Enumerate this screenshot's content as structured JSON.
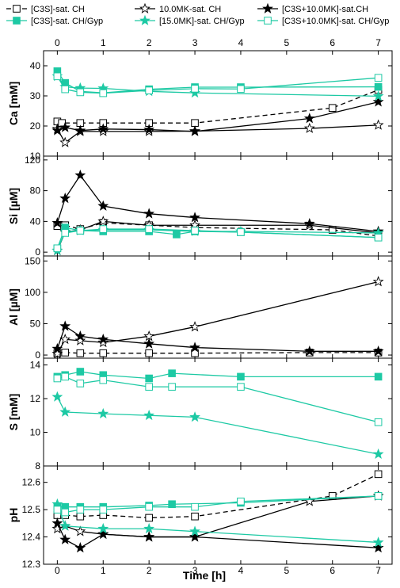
{
  "chart_data": {
    "type": "line",
    "xlabel": "Time [h]",
    "xlim": [
      -0.3,
      7.3
    ],
    "xticks": [
      0,
      1,
      2,
      3,
      4,
      5,
      6,
      7
    ],
    "legend": {
      "placement": "top",
      "entries": [
        {
          "key": "c3s_ch",
          "label": "[C3S]-sat. CH"
        },
        {
          "key": "mk_ch",
          "label": "10.0MK-sat. CH"
        },
        {
          "key": "c3smk_ch",
          "label": "[C3S+10.0MK]-sat.CH"
        },
        {
          "key": "c3s_gyp",
          "label": "[C3S]-sat. CH/Gyp"
        },
        {
          "key": "mk_gyp",
          "label": "[15.0MK]-sat. CH/Gyp"
        },
        {
          "key": "c3smk_gyp",
          "label": "[C3S+10.0MK]-sat. CH/Gyp"
        }
      ]
    },
    "styles": {
      "c3s_ch": {
        "color": "#000000",
        "marker": "square",
        "fill": "open",
        "dash": "6,4"
      },
      "mk_ch": {
        "color": "#000000",
        "marker": "star",
        "fill": "open",
        "dash": ""
      },
      "c3smk_ch": {
        "color": "#000000",
        "marker": "star",
        "fill": "filled",
        "dash": ""
      },
      "c3s_gyp": {
        "color": "#1dc9a4",
        "marker": "square",
        "fill": "filled",
        "dash": ""
      },
      "mk_gyp": {
        "color": "#1dc9a4",
        "marker": "star",
        "fill": "filled",
        "dash": ""
      },
      "c3smk_gyp": {
        "color": "#1dc9a4",
        "marker": "square",
        "fill": "open",
        "dash": ""
      }
    },
    "panels": [
      {
        "ylabel": "Ca [mM]",
        "ylim": [
          10,
          45
        ],
        "yticks": [
          10,
          20,
          30,
          40
        ],
        "ytick_labels": [
          "10",
          "20",
          "30",
          "40"
        ],
        "series": [
          {
            "key": "c3s_ch",
            "x": [
              0,
              0.1,
              0.5,
              1,
              2,
              3,
              6,
              7
            ],
            "y": [
              21.5,
              21,
              21,
              21,
              21,
              21,
              26,
              32
            ]
          },
          {
            "key": "mk_ch",
            "x": [
              0,
              0.17,
              0.5,
              1,
              2,
              3,
              5.5,
              7
            ],
            "y": [
              19,
              14.5,
              18.2,
              18.2,
              18.2,
              18.3,
              19.2,
              20.3
            ]
          },
          {
            "key": "c3smk_ch",
            "x": [
              0,
              0.17,
              0.5,
              1,
              2,
              3,
              5.5,
              7
            ],
            "y": [
              18.5,
              19.5,
              18.5,
              19,
              18.8,
              18.2,
              22.5,
              28
            ]
          },
          {
            "key": "c3s_gyp",
            "x": [
              0,
              0.17,
              0.5,
              1,
              2,
              3,
              4,
              7
            ],
            "y": [
              38.2,
              34.3,
              31.5,
              31,
              32.2,
              32.9,
              32.9,
              33
            ]
          },
          {
            "key": "mk_gyp",
            "x": [
              0,
              0.17,
              0.5,
              1,
              2,
              3,
              7
            ],
            "y": [
              36.5,
              33,
              32.6,
              32.5,
              31.5,
              31,
              29.9
            ]
          },
          {
            "key": "c3smk_gyp",
            "x": [
              0,
              0.17,
              0.5,
              1,
              2,
              3,
              4,
              7
            ],
            "y": [
              36.5,
              32.2,
              31.2,
              30.9,
              31.8,
              32.4,
              32.3,
              36
            ]
          }
        ]
      },
      {
        "ylabel": "Si [µM]",
        "ylim": [
          -5,
          125
        ],
        "yticks": [
          0,
          40,
          80,
          120
        ],
        "ytick_labels": [
          "0",
          "40",
          "80",
          "120"
        ],
        "series": [
          {
            "key": "c3s_ch",
            "x": [
              0,
              0.17,
              0.5,
              1,
              2,
              3,
              6,
              7
            ],
            "y": [
              34,
              35,
              30,
              38,
              35,
              32,
              29,
              21
            ]
          },
          {
            "key": "mk_ch",
            "x": [
              0,
              0.17,
              0.5,
              1,
              2,
              3,
              5.5,
              7
            ],
            "y": [
              2,
              26,
              29,
              40,
              35,
              35,
              35,
              25
            ]
          },
          {
            "key": "c3smk_ch",
            "x": [
              0,
              0.17,
              0.5,
              1,
              2,
              3,
              5.5,
              7
            ],
            "y": [
              38,
              70,
              100,
              60,
              50,
              45,
              37,
              27
            ]
          },
          {
            "key": "c3s_gyp",
            "x": [
              0,
              0.17,
              0.5,
              1,
              2,
              2.6,
              3,
              4,
              7
            ],
            "y": [
              5,
              32,
              28,
              27,
              27,
              23,
              27,
              26,
              19
            ]
          },
          {
            "key": "mk_gyp",
            "x": [
              0,
              0.17,
              0.5,
              1,
              2,
              3,
              4,
              7
            ],
            "y": [
              2,
              27,
              28,
              29,
              29,
              27,
              27,
              25
            ]
          },
          {
            "key": "c3smk_gyp",
            "x": [
              0,
              0.17,
              0.5,
              1,
              2,
              3,
              4,
              7
            ],
            "y": [
              5,
              25,
              28,
              30,
              30,
              28,
              26,
              19
            ]
          }
        ]
      },
      {
        "ylabel": "Al [µM]",
        "ylim": [
          -5,
          158
        ],
        "yticks": [
          0,
          50,
          100,
          150
        ],
        "ytick_labels": [
          "0",
          "50",
          "100",
          "150"
        ],
        "series": [
          {
            "key": "c3s_ch",
            "x": [
              0,
              0.17,
              0.5,
              1,
              2,
              3,
              5.5,
              7
            ],
            "y": [
              3,
              4,
              3,
              3,
              3,
              3,
              4,
              4
            ]
          },
          {
            "key": "mk_ch",
            "x": [
              0,
              0.17,
              0.5,
              1,
              2,
              3,
              7
            ],
            "y": [
              2,
              25,
              23,
              20,
              30,
              45,
              117
            ]
          },
          {
            "key": "c3smk_ch",
            "x": [
              0,
              0.17,
              0.5,
              1,
              2,
              3,
              5.5,
              7
            ],
            "y": [
              10,
              46,
              30,
              25,
              18,
              12,
              6,
              6
            ]
          }
        ]
      },
      {
        "ylabel": "S [mM]",
        "ylim": [
          8,
          14.4
        ],
        "yticks": [
          8,
          10,
          12,
          14
        ],
        "ytick_labels": [
          "8",
          "10",
          "12",
          "14"
        ],
        "series": [
          {
            "key": "c3s_gyp",
            "x": [
              0,
              0.17,
              0.5,
              1,
              2,
              2.5,
              4,
              7
            ],
            "y": [
              13.3,
              13.4,
              13.6,
              13.4,
              13.2,
              13.5,
              13.3,
              13.3
            ]
          },
          {
            "key": "mk_gyp",
            "x": [
              0,
              0.17,
              1,
              2,
              3,
              7
            ],
            "y": [
              12.1,
              11.2,
              11.1,
              11,
              10.9,
              8.7
            ]
          },
          {
            "key": "c3smk_gyp",
            "x": [
              0,
              0.17,
              0.5,
              1,
              2,
              2.5,
              4,
              7
            ],
            "y": [
              13.2,
              13.3,
              12.9,
              13.1,
              12.7,
              12.7,
              12.7,
              10.6
            ]
          }
        ]
      },
      {
        "ylabel": "pH",
        "ylim": [
          12.3,
          12.66
        ],
        "yticks": [
          12.3,
          12.4,
          12.5,
          12.6
        ],
        "ytick_labels": [
          "12.3",
          "12.4",
          "12.5",
          "12.6"
        ],
        "series": [
          {
            "key": "c3s_ch",
            "x": [
              0,
              0.17,
              0.5,
              1,
              2,
              3,
              6,
              7
            ],
            "y": [
              12.48,
              12.48,
              12.475,
              12.48,
              12.47,
              12.475,
              12.55,
              12.63
            ]
          },
          {
            "key": "mk_ch",
            "x": [
              0,
              0.17,
              0.5,
              1,
              2,
              3,
              5.5,
              7
            ],
            "y": [
              12.43,
              12.44,
              12.42,
              12.41,
              12.4,
              12.4,
              12.53,
              12.55
            ]
          },
          {
            "key": "c3smk_ch",
            "x": [
              0,
              0.17,
              0.5,
              1,
              2,
              3,
              7
            ],
            "y": [
              12.45,
              12.39,
              12.36,
              12.41,
              12.4,
              12.4,
              12.36
            ]
          },
          {
            "key": "c3s_gyp",
            "x": [
              0,
              0.17,
              0.5,
              1,
              2,
              2.5,
              4,
              7
            ],
            "y": [
              12.51,
              12.51,
              12.51,
              12.51,
              12.515,
              12.52,
              12.525,
              12.55
            ]
          },
          {
            "key": "mk_gyp",
            "x": [
              0,
              0.17,
              1,
              2,
              3,
              7
            ],
            "y": [
              12.52,
              12.44,
              12.43,
              12.43,
              12.42,
              12.38
            ]
          },
          {
            "key": "c3smk_gyp",
            "x": [
              0,
              0.17,
              0.5,
              1,
              2,
              3,
              4,
              7
            ],
            "y": [
              12.5,
              12.49,
              12.5,
              12.5,
              12.51,
              12.51,
              12.53,
              12.55
            ]
          }
        ]
      }
    ]
  }
}
